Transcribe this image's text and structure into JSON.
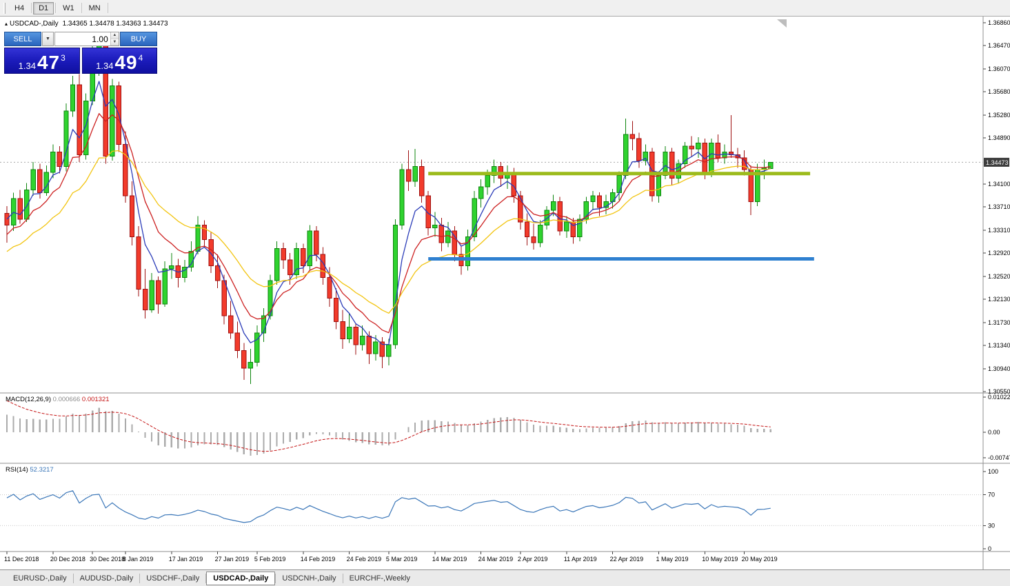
{
  "toolbar": {
    "buttons": [
      {
        "label": "H4",
        "active": false
      },
      {
        "label": "D1",
        "active": true
      },
      {
        "label": "W1",
        "active": false
      },
      {
        "label": "MN",
        "active": false
      }
    ]
  },
  "chart": {
    "collapse_icon": "▴",
    "title_symbol": "USDCAD-,Daily",
    "title_ohlc": "1.34365 1.34478 1.34363 1.34473",
    "current_price": "1.34473"
  },
  "one_click": {
    "sell_label": "SELL",
    "buy_label": "BUY",
    "volume": "1.00",
    "sell_price": {
      "prefix": "1.34",
      "big": "47",
      "sup": "3"
    },
    "buy_price": {
      "prefix": "1.34",
      "big": "49",
      "sup": "4"
    }
  },
  "price_scale": {
    "labels": [
      "1.36860",
      "1.36470",
      "1.36070",
      "1.35680",
      "1.35280",
      "1.34890",
      "1.34100",
      "1.33710",
      "1.33310",
      "1.32920",
      "1.32520",
      "1.32130",
      "1.31730",
      "1.31340",
      "1.30940",
      "1.30550"
    ]
  },
  "time_axis": {
    "labels": [
      {
        "text": "11 Dec 2018",
        "bar": 0
      },
      {
        "text": "20 Dec 2018",
        "bar": 7
      },
      {
        "text": "30 Dec 2018",
        "bar": 13
      },
      {
        "text": "8 Jan 2019",
        "bar": 18
      },
      {
        "text": "17 Jan 2019",
        "bar": 25
      },
      {
        "text": "27 Jan 2019",
        "bar": 32
      },
      {
        "text": "5 Feb 2019",
        "bar": 38
      },
      {
        "text": "14 Feb 2019",
        "bar": 45
      },
      {
        "text": "24 Feb 2019",
        "bar": 52
      },
      {
        "text": "5 Mar 2019",
        "bar": 58
      },
      {
        "text": "14 Mar 2019",
        "bar": 65
      },
      {
        "text": "24 Mar 2019",
        "bar": 72
      },
      {
        "text": "2 Apr 2019",
        "bar": 78
      },
      {
        "text": "11 Apr 2019",
        "bar": 85
      },
      {
        "text": "22 Apr 2019",
        "bar": 92
      },
      {
        "text": "1 May 2019",
        "bar": 99
      },
      {
        "text": "10 May 2019",
        "bar": 106
      },
      {
        "text": "20 May 2019",
        "bar": 112
      }
    ]
  },
  "panes": {
    "macd": {
      "name": "MACD(12,26,9)",
      "value_main": "0.000666",
      "value_signal": "0.001321",
      "scale": [
        "0.010229",
        "0.00",
        "-0.007477"
      ]
    },
    "rsi": {
      "name": "RSI(14)",
      "value": "52.3217",
      "scale": [
        "100",
        "70",
        "30",
        "0"
      ]
    }
  },
  "tabs": [
    {
      "label": "EURUSD-,Daily",
      "active": false
    },
    {
      "label": "AUDUSD-,Daily",
      "active": false
    },
    {
      "label": "USDCHF-,Daily",
      "active": false
    },
    {
      "label": "USDCAD-,Daily",
      "active": true
    },
    {
      "label": "USDCNH-,Daily",
      "active": false
    },
    {
      "label": "EURCHF-,Weekly",
      "active": false
    }
  ],
  "chart_data": {
    "type": "candlestick",
    "symbol": "USDCAD",
    "timeframe": "Daily",
    "y_range": [
      1.3055,
      1.3686
    ],
    "colors": {
      "bull": "#2fd32f",
      "bull_border": "#0c840c",
      "bear": "#f23b2b",
      "bear_border": "#9e0f0f",
      "bid_line": "#a8a8a8",
      "price_tag_bg": "#3d3d3d"
    },
    "candles": [
      [
        1.336,
        1.3372,
        1.331,
        1.334
      ],
      [
        1.334,
        1.3395,
        1.333,
        1.3385
      ],
      [
        1.3385,
        1.34,
        1.3342,
        1.335
      ],
      [
        1.335,
        1.3412,
        1.3345,
        1.34
      ],
      [
        1.34,
        1.3448,
        1.339,
        1.3435
      ],
      [
        1.3435,
        1.3445,
        1.3385,
        1.3395
      ],
      [
        1.3395,
        1.3442,
        1.339,
        1.343
      ],
      [
        1.343,
        1.3478,
        1.342,
        1.3465
      ],
      [
        1.3465,
        1.3475,
        1.3428,
        1.344
      ],
      [
        1.344,
        1.3548,
        1.3432,
        1.3535
      ],
      [
        1.3535,
        1.3595,
        1.3525,
        1.358
      ],
      [
        1.358,
        1.3598,
        1.3448,
        1.346
      ],
      [
        1.346,
        1.3565,
        1.3452,
        1.3552
      ],
      [
        1.3552,
        1.365,
        1.3545,
        1.3638
      ],
      [
        1.3638,
        1.3664,
        1.3595,
        1.3652
      ],
      [
        1.3652,
        1.3658,
        1.3445,
        1.3458
      ],
      [
        1.3458,
        1.359,
        1.345,
        1.3578
      ],
      [
        1.3578,
        1.3585,
        1.3465,
        1.3478
      ],
      [
        1.3478,
        1.35,
        1.3378,
        1.339
      ],
      [
        1.339,
        1.3415,
        1.3305,
        1.332
      ],
      [
        1.332,
        1.3338,
        1.3218,
        1.323
      ],
      [
        1.323,
        1.3265,
        1.318,
        1.3195
      ],
      [
        1.3195,
        1.3258,
        1.319,
        1.3245
      ],
      [
        1.3245,
        1.3252,
        1.3188,
        1.3205
      ],
      [
        1.3205,
        1.3278,
        1.32,
        1.3265
      ],
      [
        1.3265,
        1.3292,
        1.3248,
        1.327
      ],
      [
        1.327,
        1.3282,
        1.3233,
        1.325
      ],
      [
        1.325,
        1.328,
        1.3242,
        1.3268
      ],
      [
        1.3268,
        1.3312,
        1.326,
        1.3295
      ],
      [
        1.3295,
        1.3355,
        1.329,
        1.334
      ],
      [
        1.334,
        1.3348,
        1.3302,
        1.3315
      ],
      [
        1.3315,
        1.3328,
        1.3258,
        1.327
      ],
      [
        1.327,
        1.329,
        1.3232,
        1.3245
      ],
      [
        1.3245,
        1.3255,
        1.317,
        1.3185
      ],
      [
        1.3185,
        1.321,
        1.3145,
        1.3155
      ],
      [
        1.3155,
        1.3175,
        1.3112,
        1.3125
      ],
      [
        1.3125,
        1.3138,
        1.3075,
        1.3095
      ],
      [
        1.3095,
        1.3128,
        1.3068,
        1.3105
      ],
      [
        1.3105,
        1.3168,
        1.3098,
        1.3155
      ],
      [
        1.3155,
        1.3198,
        1.314,
        1.3185
      ],
      [
        1.3185,
        1.3255,
        1.3178,
        1.3245
      ],
      [
        1.3245,
        1.3312,
        1.3238,
        1.33
      ],
      [
        1.33,
        1.331,
        1.3265,
        1.328
      ],
      [
        1.328,
        1.3292,
        1.3238,
        1.3255
      ],
      [
        1.3255,
        1.331,
        1.3248,
        1.33
      ],
      [
        1.33,
        1.3308,
        1.3258,
        1.327
      ],
      [
        1.327,
        1.334,
        1.3262,
        1.333
      ],
      [
        1.333,
        1.3338,
        1.3278,
        1.329
      ],
      [
        1.329,
        1.3302,
        1.3238,
        1.325
      ],
      [
        1.325,
        1.3268,
        1.32,
        1.3215
      ],
      [
        1.3215,
        1.3232,
        1.3162,
        1.3175
      ],
      [
        1.3175,
        1.3195,
        1.3128,
        1.3145
      ],
      [
        1.3145,
        1.3188,
        1.3138,
        1.3165
      ],
      [
        1.3165,
        1.3172,
        1.3118,
        1.3135
      ],
      [
        1.3135,
        1.3168,
        1.3125,
        1.315
      ],
      [
        1.315,
        1.3158,
        1.3102,
        1.312
      ],
      [
        1.312,
        1.3152,
        1.3108,
        1.314
      ],
      [
        1.314,
        1.3148,
        1.3095,
        1.3115
      ],
      [
        1.3115,
        1.3145,
        1.31,
        1.3135
      ],
      [
        1.3135,
        1.335,
        1.3128,
        1.334
      ],
      [
        1.334,
        1.3445,
        1.3332,
        1.3435
      ],
      [
        1.3435,
        1.3468,
        1.3398,
        1.3415
      ],
      [
        1.3415,
        1.347,
        1.3405,
        1.344
      ],
      [
        1.344,
        1.3452,
        1.3378,
        1.339
      ],
      [
        1.339,
        1.3398,
        1.3322,
        1.3335
      ],
      [
        1.3335,
        1.3362,
        1.332,
        1.334
      ],
      [
        1.334,
        1.3352,
        1.3295,
        1.331
      ],
      [
        1.331,
        1.3345,
        1.3302,
        1.333
      ],
      [
        1.333,
        1.3338,
        1.3278,
        1.329
      ],
      [
        1.329,
        1.3305,
        1.3255,
        1.327
      ],
      [
        1.327,
        1.3332,
        1.3262,
        1.332
      ],
      [
        1.332,
        1.3398,
        1.3312,
        1.3385
      ],
      [
        1.3385,
        1.3418,
        1.337,
        1.3405
      ],
      [
        1.3405,
        1.3435,
        1.3392,
        1.3425
      ],
      [
        1.3425,
        1.3452,
        1.3412,
        1.344
      ],
      [
        1.344,
        1.3448,
        1.3405,
        1.342
      ],
      [
        1.342,
        1.3442,
        1.3402,
        1.343
      ],
      [
        1.343,
        1.3438,
        1.3378,
        1.339
      ],
      [
        1.339,
        1.3398,
        1.3332,
        1.3345
      ],
      [
        1.3345,
        1.336,
        1.3305,
        1.332
      ],
      [
        1.332,
        1.3342,
        1.3298,
        1.331
      ],
      [
        1.331,
        1.3348,
        1.3302,
        1.334
      ],
      [
        1.334,
        1.3372,
        1.3332,
        1.3365
      ],
      [
        1.3365,
        1.3392,
        1.3355,
        1.338
      ],
      [
        1.338,
        1.3388,
        1.3322,
        1.333
      ],
      [
        1.333,
        1.3355,
        1.3318,
        1.3345
      ],
      [
        1.3345,
        1.3352,
        1.3308,
        1.332
      ],
      [
        1.332,
        1.3358,
        1.3312,
        1.335
      ],
      [
        1.335,
        1.3388,
        1.3342,
        1.338
      ],
      [
        1.338,
        1.3398,
        1.3365,
        1.339
      ],
      [
        1.339,
        1.3396,
        1.3355,
        1.337
      ],
      [
        1.337,
        1.3392,
        1.3358,
        1.338
      ],
      [
        1.338,
        1.3402,
        1.3368,
        1.3395
      ],
      [
        1.3395,
        1.3432,
        1.3382,
        1.3425
      ],
      [
        1.3425,
        1.3522,
        1.3418,
        1.3495
      ],
      [
        1.3495,
        1.3518,
        1.3468,
        1.3488
      ],
      [
        1.3488,
        1.3498,
        1.3438,
        1.345
      ],
      [
        1.345,
        1.3478,
        1.3442,
        1.3465
      ],
      [
        1.3465,
        1.3472,
        1.338,
        1.339
      ],
      [
        1.339,
        1.3432,
        1.3378,
        1.3425
      ],
      [
        1.3425,
        1.3475,
        1.3418,
        1.3465
      ],
      [
        1.3465,
        1.3472,
        1.3408,
        1.342
      ],
      [
        1.342,
        1.3452,
        1.3412,
        1.3445
      ],
      [
        1.3445,
        1.3482,
        1.3438,
        1.3475
      ],
      [
        1.3475,
        1.3492,
        1.3458,
        1.347
      ],
      [
        1.347,
        1.349,
        1.3455,
        1.348
      ],
      [
        1.348,
        1.3488,
        1.3418,
        1.343
      ],
      [
        1.343,
        1.3488,
        1.3422,
        1.348
      ],
      [
        1.348,
        1.3495,
        1.3448,
        1.3455
      ],
      [
        1.3455,
        1.3478,
        1.3445,
        1.3465
      ],
      [
        1.3465,
        1.3528,
        1.3455,
        1.346
      ],
      [
        1.346,
        1.3472,
        1.3438,
        1.3455
      ],
      [
        1.3455,
        1.3468,
        1.3425,
        1.3435
      ],
      [
        1.3435,
        1.3442,
        1.3357,
        1.338
      ],
      [
        1.338,
        1.3445,
        1.3372,
        1.3435
      ],
      [
        1.3435,
        1.3452,
        1.3418,
        1.3437
      ],
      [
        1.34365,
        1.34478,
        1.34363,
        1.34473
      ]
    ],
    "ma": [
      {
        "period": 5,
        "seed": 1.3355,
        "color": "#2a3bb8",
        "name": "ma-fast-blue"
      },
      {
        "period": 10,
        "seed": 1.332,
        "color": "#cc1f1f",
        "name": "ma-mid-red"
      },
      {
        "period": 21,
        "seed": 1.329,
        "color": "#f2c40f",
        "name": "ma-slow-yellow"
      }
    ],
    "hlines": [
      {
        "price": 1.3428,
        "color": "#9cbb1c",
        "width": 5,
        "from_bar": 64,
        "to_bar": 122,
        "name": "resistance-hline"
      },
      {
        "price": 1.3282,
        "color": "#2f80d0",
        "width": 5,
        "from_bar": 64,
        "to_bar": 122.6,
        "name": "support-hline"
      }
    ],
    "bid_line": {
      "price": 1.34473
    },
    "macd": {
      "fast": 12,
      "slow": 26,
      "signal": 9,
      "seed_fast": 1.34,
      "seed_slow": 1.334,
      "seed_signal": 0.0102,
      "range": [
        -0.007477,
        0.010229
      ],
      "hist_color": "#ababab",
      "signal_color": "#c41414"
    },
    "rsi": {
      "period": 14,
      "seed_gain": 0.00145,
      "seed_loss": 0.00075,
      "levels": [
        70,
        30
      ],
      "range": [
        0,
        100
      ],
      "color": "#3a76b8"
    }
  }
}
